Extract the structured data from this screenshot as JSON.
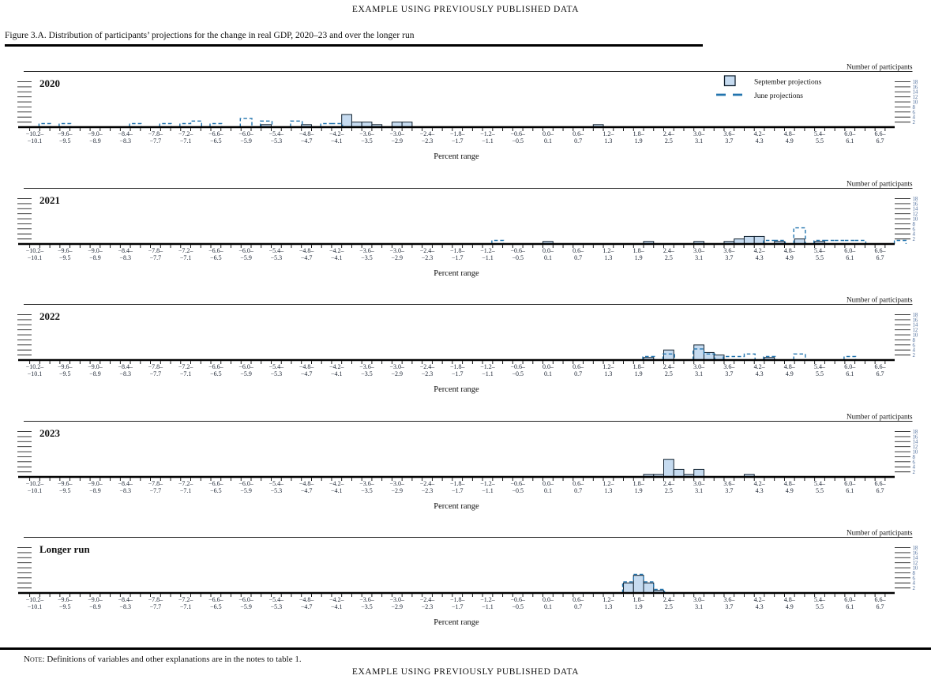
{
  "header": {
    "running_title": "EXAMPLE USING PREVIOUSLY PUBLISHED DATA",
    "figure_caption": "Figure 3.A. Distribution of participants’ projections for the change in real GDP, 2020–23 and over the longer run"
  },
  "legend": {
    "september_label": "September projections",
    "june_label": "June projections"
  },
  "axis": {
    "right_title": "Number of participants",
    "x_title": "Percent range",
    "right_ticks": [
      2,
      4,
      6,
      8,
      10,
      12,
      14,
      16,
      18
    ],
    "x_labels_start": -10.2,
    "x_labels_step": 0.6,
    "x_labels_count": 29,
    "bin_value_width": 0.2,
    "x_range": [
      -10.2,
      6.7
    ],
    "y_range": [
      0,
      19
    ]
  },
  "note": {
    "label": "Note:",
    "text": " Definitions of variables and other explanations are in the notes to table 1."
  },
  "footer": {
    "running_title": "EXAMPLE USING PREVIOUSLY PUBLISHED DATA"
  },
  "colors": {
    "bar_fill": "#c6dbf0",
    "bar_stroke": "#10202e",
    "june_dash": "#2274ae",
    "axis": "#000000",
    "tick_number": "#4a6a99",
    "label_text": "#1b2433"
  },
  "chart_data": [
    {
      "type": "bar",
      "label": "2020",
      "xlabel": "Percent range",
      "ylabel": "Number of participants",
      "series": [
        {
          "name": "September projections",
          "bins": [
            [
              -5.6,
              1
            ],
            [
              -4.8,
              1
            ],
            [
              -4.0,
              5
            ],
            [
              -3.8,
              2
            ],
            [
              -3.6,
              2
            ],
            [
              -3.4,
              1
            ],
            [
              -3.0,
              2
            ],
            [
              -2.8,
              2
            ],
            [
              1.0,
              1
            ]
          ]
        },
        {
          "name": "June projections",
          "bins": [
            [
              -10.0,
              1
            ],
            [
              -9.6,
              1
            ],
            [
              -8.2,
              1
            ],
            [
              -7.6,
              1
            ],
            [
              -7.2,
              1
            ],
            [
              -7.0,
              2
            ],
            [
              -6.6,
              1
            ],
            [
              -6.0,
              3
            ],
            [
              -5.6,
              2
            ],
            [
              -5.0,
              2
            ],
            [
              -4.4,
              1
            ],
            [
              -4.2,
              1
            ]
          ]
        }
      ]
    },
    {
      "type": "bar",
      "label": "2021",
      "xlabel": "Percent range",
      "ylabel": "Number of participants",
      "series": [
        {
          "name": "September projections",
          "bins": [
            [
              0.0,
              1
            ],
            [
              2.0,
              1
            ],
            [
              3.0,
              1
            ],
            [
              3.6,
              1
            ],
            [
              3.8,
              2
            ],
            [
              4.0,
              3
            ],
            [
              4.2,
              3
            ],
            [
              4.6,
              1
            ],
            [
              5.0,
              2
            ],
            [
              5.4,
              1
            ]
          ]
        },
        {
          "name": "June projections",
          "bins": [
            [
              -1.0,
              1
            ],
            [
              4.4,
              1
            ],
            [
              4.6,
              1
            ],
            [
              5.0,
              6
            ],
            [
              5.4,
              1
            ],
            [
              5.6,
              1
            ],
            [
              5.8,
              1
            ],
            [
              6.0,
              1
            ],
            [
              6.2,
              1
            ],
            [
              7.0,
              1
            ]
          ]
        }
      ]
    },
    {
      "type": "bar",
      "label": "2022",
      "xlabel": "Percent range",
      "ylabel": "Number of participants",
      "series": [
        {
          "name": "September projections",
          "bins": [
            [
              2.0,
              1
            ],
            [
              2.4,
              4
            ],
            [
              3.0,
              6
            ],
            [
              3.2,
              3
            ],
            [
              3.4,
              2
            ],
            [
              4.4,
              1
            ]
          ]
        },
        {
          "name": "June projections",
          "bins": [
            [
              2.0,
              1
            ],
            [
              2.4,
              2
            ],
            [
              3.0,
              4
            ],
            [
              3.2,
              2
            ],
            [
              3.6,
              1
            ],
            [
              3.8,
              1
            ],
            [
              4.0,
              2
            ],
            [
              4.4,
              1
            ],
            [
              5.0,
              2
            ],
            [
              6.0,
              1
            ]
          ]
        }
      ]
    },
    {
      "type": "bar",
      "label": "2023",
      "xlabel": "Percent range",
      "ylabel": "Number of participants",
      "series": [
        {
          "name": "September projections",
          "bins": [
            [
              2.0,
              1
            ],
            [
              2.2,
              1
            ],
            [
              2.4,
              7
            ],
            [
              2.6,
              3
            ],
            [
              2.8,
              1
            ],
            [
              3.0,
              3
            ],
            [
              4.0,
              1
            ]
          ]
        },
        {
          "name": "June projections",
          "bins": []
        }
      ]
    },
    {
      "type": "bar",
      "label": "Longer run",
      "xlabel": "Percent range",
      "ylabel": "Number of participants",
      "series": [
        {
          "name": "September projections",
          "bins": [
            [
              1.6,
              4
            ],
            [
              1.8,
              7
            ],
            [
              2.0,
              4
            ],
            [
              2.2,
              1
            ]
          ]
        },
        {
          "name": "June projections",
          "bins": [
            [
              1.6,
              4
            ],
            [
              1.8,
              7
            ],
            [
              2.0,
              4
            ],
            [
              2.2,
              1
            ]
          ]
        }
      ]
    }
  ]
}
